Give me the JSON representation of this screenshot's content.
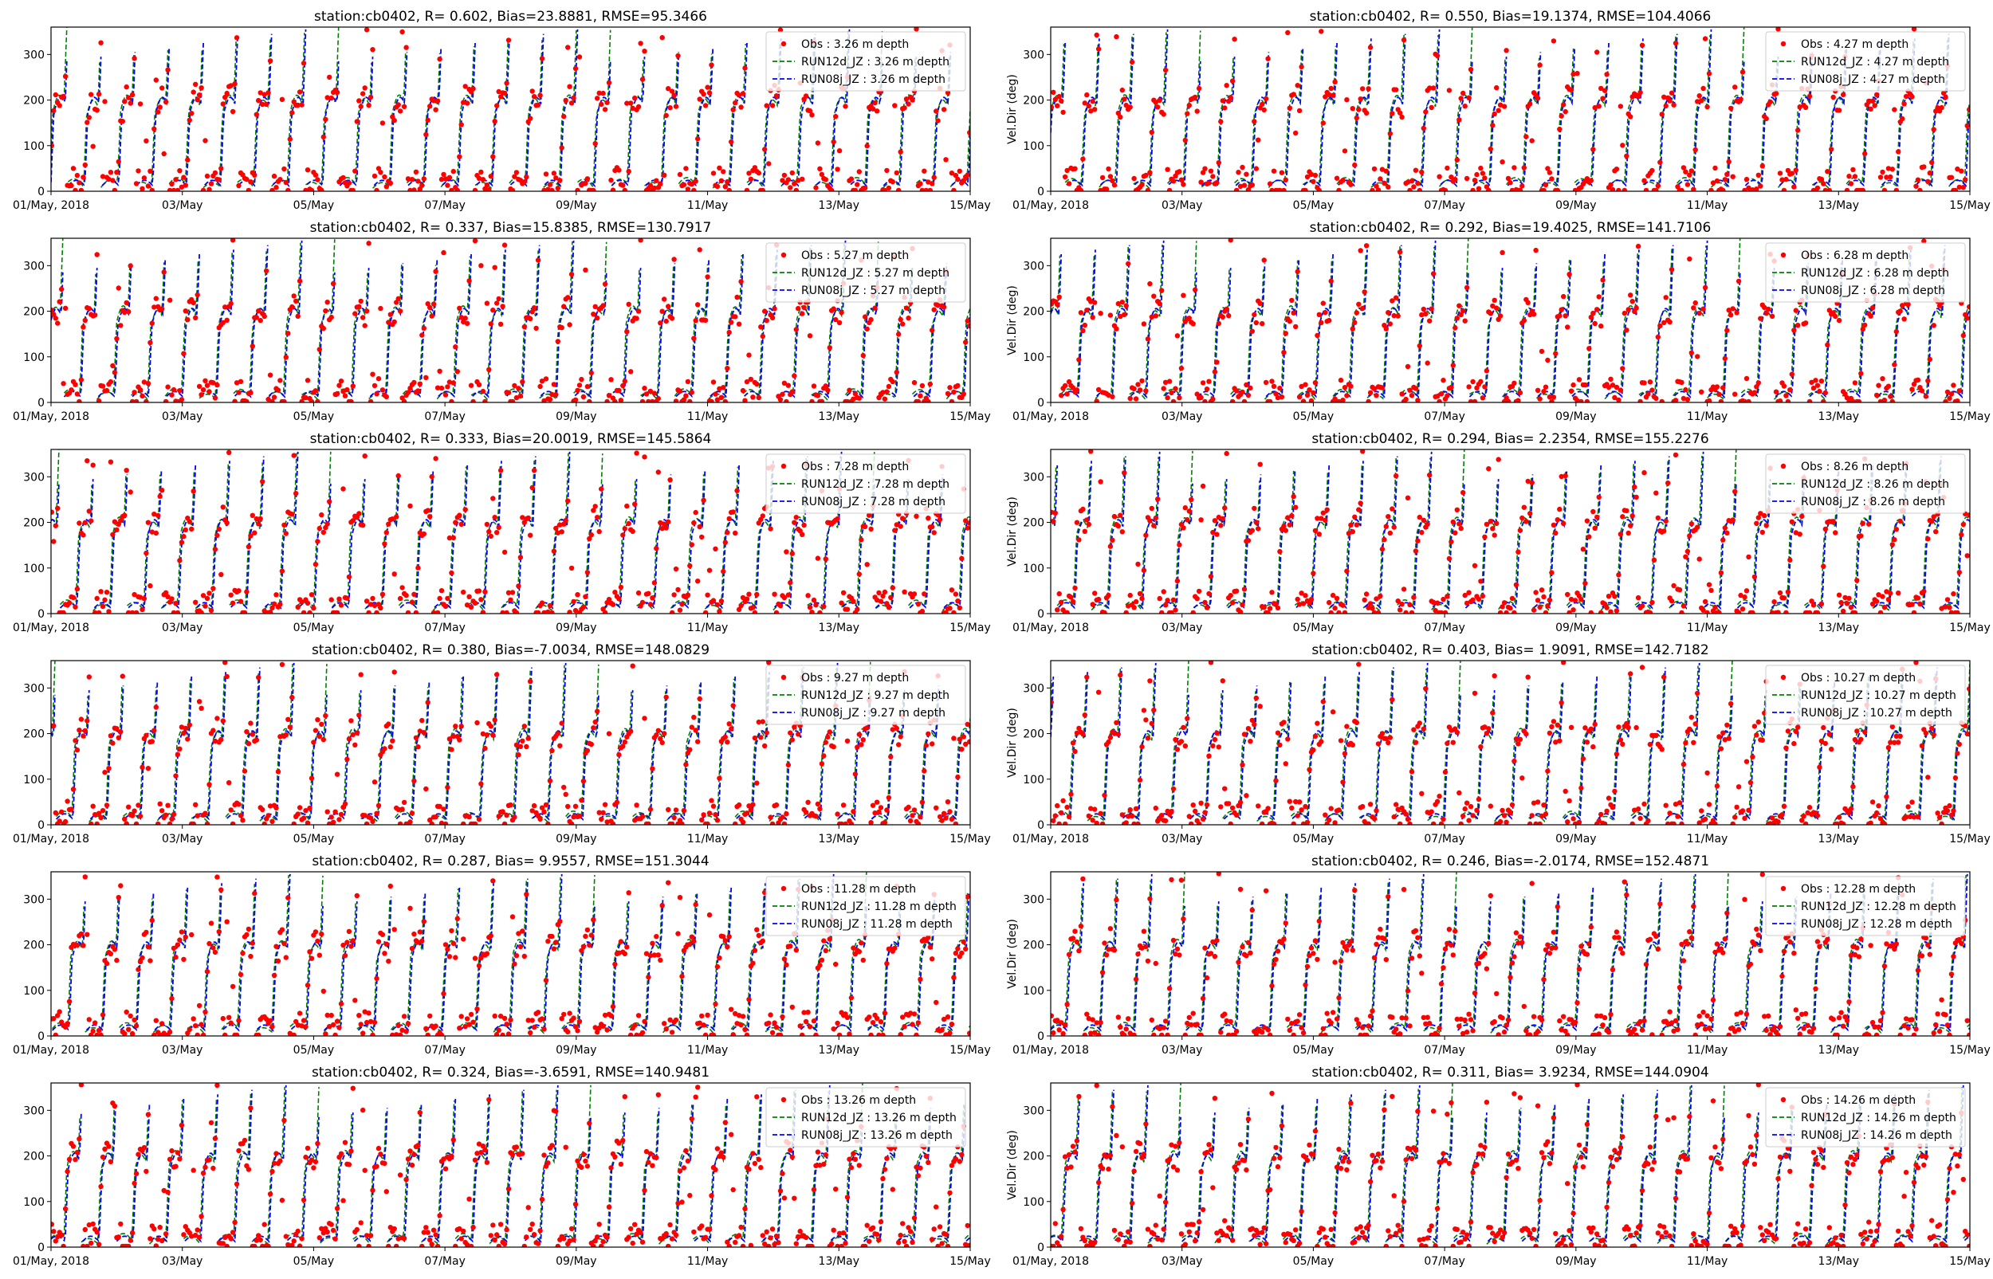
{
  "figure": {
    "palette": {
      "obs": "#ff0000",
      "run12d": "#008000",
      "run08j": "#0000ff"
    }
  },
  "chart_data": [
    {
      "type": "scatter+line",
      "title": "station:cb0402, R= 0.602, Bias=23.8881, RMSE=95.3466",
      "ylabel": "",
      "xtick_labels": [
        "01/May, 2018",
        "03/May",
        "05/May",
        "07/May",
        "09/May",
        "11/May",
        "13/May",
        "15/May"
      ],
      "xlim_days": [
        0,
        14
      ],
      "ylim": [
        0,
        360
      ],
      "yticks": [
        0,
        100,
        200,
        300
      ],
      "legend_position": "upper right",
      "grid": false,
      "series": [
        {
          "name": "Obs : 3.26 m depth",
          "style": "points",
          "color": "#ff0000"
        },
        {
          "name": "RUN12d_JZ : 3.26 m depth",
          "style": "dashed",
          "color": "#008000"
        },
        {
          "name": "RUN08j_JZ : 3.26 m depth",
          "style": "dashed",
          "color": "#0000ff"
        }
      ]
    },
    {
      "type": "scatter+line",
      "title": "station:cb0402, R= 0.550, Bias=19.1374, RMSE=104.4066",
      "ylabel": "Vel.Dir (deg)",
      "xtick_labels": [
        "01/May, 2018",
        "03/May",
        "05/May",
        "07/May",
        "09/May",
        "11/May",
        "13/May",
        "15/May"
      ],
      "xlim_days": [
        0,
        14
      ],
      "ylim": [
        0,
        360
      ],
      "yticks": [
        0,
        100,
        200,
        300
      ],
      "legend_position": "upper right",
      "grid": false,
      "series": [
        {
          "name": "Obs : 4.27 m depth",
          "style": "points",
          "color": "#ff0000"
        },
        {
          "name": "RUN12d_JZ : 4.27 m depth",
          "style": "dashed",
          "color": "#008000"
        },
        {
          "name": "RUN08j_JZ : 4.27 m depth",
          "style": "dashed",
          "color": "#0000ff"
        }
      ]
    },
    {
      "type": "scatter+line",
      "title": "station:cb0402, R= 0.337, Bias=15.8385, RMSE=130.7917",
      "ylabel": "",
      "xtick_labels": [
        "01/May, 2018",
        "03/May",
        "05/May",
        "07/May",
        "09/May",
        "11/May",
        "13/May",
        "15/May"
      ],
      "xlim_days": [
        0,
        14
      ],
      "ylim": [
        0,
        360
      ],
      "yticks": [
        0,
        100,
        200,
        300
      ],
      "legend_position": "upper right",
      "grid": false,
      "series": [
        {
          "name": "Obs : 5.27 m depth",
          "style": "points",
          "color": "#ff0000"
        },
        {
          "name": "RUN12d_JZ : 5.27 m depth",
          "style": "dashed",
          "color": "#008000"
        },
        {
          "name": "RUN08j_JZ : 5.27 m depth",
          "style": "dashed",
          "color": "#0000ff"
        }
      ]
    },
    {
      "type": "scatter+line",
      "title": "station:cb0402, R= 0.292, Bias=19.4025, RMSE=141.7106",
      "ylabel": "Vel.Dir (deg)",
      "xtick_labels": [
        "01/May, 2018",
        "03/May",
        "05/May",
        "07/May",
        "09/May",
        "11/May",
        "13/May",
        "15/May"
      ],
      "xlim_days": [
        0,
        14
      ],
      "ylim": [
        0,
        360
      ],
      "yticks": [
        0,
        100,
        200,
        300
      ],
      "legend_position": "upper right",
      "grid": false,
      "series": [
        {
          "name": "Obs : 6.28 m depth",
          "style": "points",
          "color": "#ff0000"
        },
        {
          "name": "RUN12d_JZ : 6.28 m depth",
          "style": "dashed",
          "color": "#008000"
        },
        {
          "name": "RUN08j_JZ : 6.28 m depth",
          "style": "dashed",
          "color": "#0000ff"
        }
      ]
    },
    {
      "type": "scatter+line",
      "title": "station:cb0402, R= 0.333, Bias=20.0019, RMSE=145.5864",
      "ylabel": "",
      "xtick_labels": [
        "01/May, 2018",
        "03/May",
        "05/May",
        "07/May",
        "09/May",
        "11/May",
        "13/May",
        "15/May"
      ],
      "xlim_days": [
        0,
        14
      ],
      "ylim": [
        0,
        360
      ],
      "yticks": [
        0,
        100,
        200,
        300
      ],
      "legend_position": "upper right",
      "grid": false,
      "series": [
        {
          "name": "Obs : 7.28 m depth",
          "style": "points",
          "color": "#ff0000"
        },
        {
          "name": "RUN12d_JZ : 7.28 m depth",
          "style": "dashed",
          "color": "#008000"
        },
        {
          "name": "RUN08j_JZ : 7.28 m depth",
          "style": "dashed",
          "color": "#0000ff"
        }
      ]
    },
    {
      "type": "scatter+line",
      "title": "station:cb0402, R= 0.294, Bias= 2.2354, RMSE=155.2276",
      "ylabel": "Vel.Dir (deg)",
      "xtick_labels": [
        "01/May, 2018",
        "03/May",
        "05/May",
        "07/May",
        "09/May",
        "11/May",
        "13/May",
        "15/May"
      ],
      "xlim_days": [
        0,
        14
      ],
      "ylim": [
        0,
        360
      ],
      "yticks": [
        0,
        100,
        200,
        300
      ],
      "legend_position": "upper right",
      "grid": false,
      "series": [
        {
          "name": "Obs : 8.26 m depth",
          "style": "points",
          "color": "#ff0000"
        },
        {
          "name": "RUN12d_JZ : 8.26 m depth",
          "style": "dashed",
          "color": "#008000"
        },
        {
          "name": "RUN08j_JZ : 8.26 m depth",
          "style": "dashed",
          "color": "#0000ff"
        }
      ]
    },
    {
      "type": "scatter+line",
      "title": "station:cb0402, R= 0.380, Bias=-7.0034, RMSE=148.0829",
      "ylabel": "",
      "xtick_labels": [
        "01/May, 2018",
        "03/May",
        "05/May",
        "07/May",
        "09/May",
        "11/May",
        "13/May",
        "15/May"
      ],
      "xlim_days": [
        0,
        14
      ],
      "ylim": [
        0,
        360
      ],
      "yticks": [
        0,
        100,
        200,
        300
      ],
      "legend_position": "upper right",
      "grid": false,
      "series": [
        {
          "name": "Obs : 9.27 m depth",
          "style": "points",
          "color": "#ff0000"
        },
        {
          "name": "RUN12d_JZ : 9.27 m depth",
          "style": "dashed",
          "color": "#008000"
        },
        {
          "name": "RUN08j_JZ : 9.27 m depth",
          "style": "dashed",
          "color": "#0000ff"
        }
      ]
    },
    {
      "type": "scatter+line",
      "title": "station:cb0402, R= 0.403, Bias= 1.9091, RMSE=142.7182",
      "ylabel": "Vel.Dir (deg)",
      "xtick_labels": [
        "01/May, 2018",
        "03/May",
        "05/May",
        "07/May",
        "09/May",
        "11/May",
        "13/May",
        "15/May"
      ],
      "xlim_days": [
        0,
        14
      ],
      "ylim": [
        0,
        360
      ],
      "yticks": [
        0,
        100,
        200,
        300
      ],
      "legend_position": "upper right",
      "grid": false,
      "series": [
        {
          "name": "Obs : 10.27 m depth",
          "style": "points",
          "color": "#ff0000"
        },
        {
          "name": "RUN12d_JZ : 10.27 m depth",
          "style": "dashed",
          "color": "#008000"
        },
        {
          "name": "RUN08j_JZ : 10.27 m depth",
          "style": "dashed",
          "color": "#0000ff"
        }
      ]
    },
    {
      "type": "scatter+line",
      "title": "station:cb0402, R= 0.287, Bias= 9.9557, RMSE=151.3044",
      "ylabel": "",
      "xtick_labels": [
        "01/May, 2018",
        "03/May",
        "05/May",
        "07/May",
        "09/May",
        "11/May",
        "13/May",
        "15/May"
      ],
      "xlim_days": [
        0,
        14
      ],
      "ylim": [
        0,
        360
      ],
      "yticks": [
        0,
        100,
        200,
        300
      ],
      "legend_position": "upper right",
      "grid": false,
      "series": [
        {
          "name": "Obs : 11.28 m depth",
          "style": "points",
          "color": "#ff0000"
        },
        {
          "name": "RUN12d_JZ : 11.28 m depth",
          "style": "dashed",
          "color": "#008000"
        },
        {
          "name": "RUN08j_JZ : 11.28 m depth",
          "style": "dashed",
          "color": "#0000ff"
        }
      ]
    },
    {
      "type": "scatter+line",
      "title": "station:cb0402, R= 0.246, Bias=-2.0174, RMSE=152.4871",
      "ylabel": "Vel.Dir (deg)",
      "xtick_labels": [
        "01/May, 2018",
        "03/May",
        "05/May",
        "07/May",
        "09/May",
        "11/May",
        "13/May",
        "15/May"
      ],
      "xlim_days": [
        0,
        14
      ],
      "ylim": [
        0,
        360
      ],
      "yticks": [
        0,
        100,
        200,
        300
      ],
      "legend_position": "upper right",
      "grid": false,
      "series": [
        {
          "name": "Obs : 12.28 m depth",
          "style": "points",
          "color": "#ff0000"
        },
        {
          "name": "RUN12d_JZ : 12.28 m depth",
          "style": "dashed",
          "color": "#008000"
        },
        {
          "name": "RUN08j_JZ : 12.28 m depth",
          "style": "dashed",
          "color": "#0000ff"
        }
      ]
    },
    {
      "type": "scatter+line",
      "title": "station:cb0402, R= 0.324, Bias=-3.6591, RMSE=140.9481",
      "ylabel": "",
      "xtick_labels": [
        "01/May, 2018",
        "03/May",
        "05/May",
        "07/May",
        "09/May",
        "11/May",
        "13/May",
        "15/May"
      ],
      "xlim_days": [
        0,
        14
      ],
      "ylim": [
        0,
        360
      ],
      "yticks": [
        0,
        100,
        200,
        300
      ],
      "legend_position": "upper right",
      "grid": false,
      "series": [
        {
          "name": "Obs : 13.26 m depth",
          "style": "points",
          "color": "#ff0000"
        },
        {
          "name": "RUN12d_JZ : 13.26 m depth",
          "style": "dashed",
          "color": "#008000"
        },
        {
          "name": "RUN08j_JZ : 13.26 m depth",
          "style": "dashed",
          "color": "#0000ff"
        }
      ]
    },
    {
      "type": "scatter+line",
      "title": "station:cb0402, R= 0.311, Bias= 3.9234, RMSE=144.0904",
      "ylabel": "Vel.Dir (deg)",
      "xtick_labels": [
        "01/May, 2018",
        "03/May",
        "05/May",
        "07/May",
        "09/May",
        "11/May",
        "13/May",
        "15/May"
      ],
      "xlim_days": [
        0,
        14
      ],
      "ylim": [
        0,
        360
      ],
      "yticks": [
        0,
        100,
        200,
        300
      ],
      "legend_position": "upper right",
      "grid": false,
      "series": [
        {
          "name": "Obs : 14.26 m depth",
          "style": "points",
          "color": "#ff0000"
        },
        {
          "name": "RUN12d_JZ : 14.26 m depth",
          "style": "dashed",
          "color": "#008000"
        },
        {
          "name": "RUN08j_JZ : 14.26 m depth",
          "style": "dashed",
          "color": "#0000ff"
        }
      ]
    }
  ]
}
